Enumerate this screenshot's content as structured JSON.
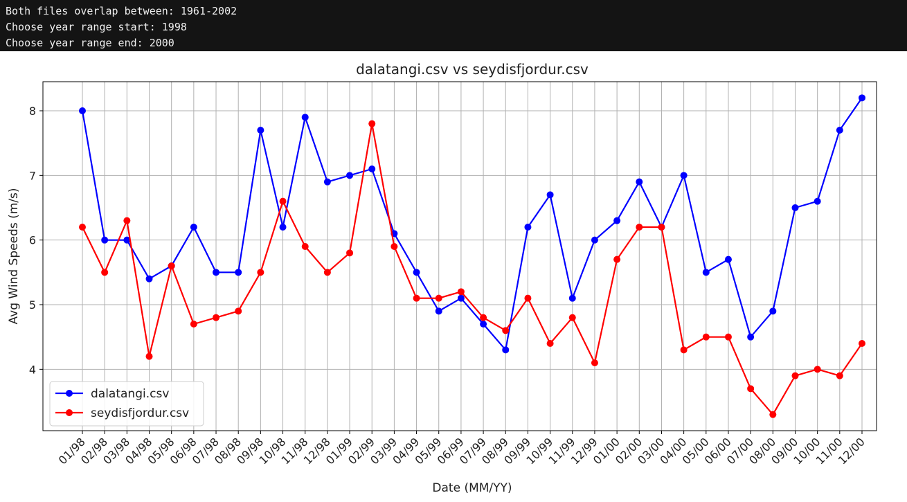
{
  "console": {
    "lines": [
      "Both files overlap between: 1961-2002",
      "Choose year range start: 1998",
      "Choose year range end: 2000"
    ]
  },
  "chart_data": {
    "type": "line",
    "title": "dalatangi.csv vs seydisfjordur.csv",
    "xlabel": "Date (MM/YY)",
    "ylabel": "Avg Wind Speeds (m/s)",
    "categories": [
      "01/98",
      "02/98",
      "03/98",
      "04/98",
      "05/98",
      "06/98",
      "07/98",
      "08/98",
      "09/98",
      "10/98",
      "11/98",
      "12/98",
      "01/99",
      "02/99",
      "03/99",
      "04/99",
      "05/99",
      "06/99",
      "07/99",
      "08/99",
      "09/99",
      "10/99",
      "11/99",
      "12/99",
      "01/00",
      "02/00",
      "03/00",
      "04/00",
      "05/00",
      "06/00",
      "07/00",
      "08/00",
      "09/00",
      "10/00",
      "11/00",
      "12/00"
    ],
    "ylim": [
      3.05,
      8.45
    ],
    "yticks": [
      4,
      5,
      6,
      7,
      8
    ],
    "grid": true,
    "legend_position": "lower-left",
    "series": [
      {
        "name": "dalatangi.csv",
        "color": "#0000ff",
        "values": [
          8.0,
          6.0,
          6.0,
          5.4,
          5.6,
          6.2,
          5.5,
          5.5,
          7.7,
          6.2,
          7.9,
          6.9,
          7.0,
          7.1,
          6.1,
          5.5,
          4.9,
          5.1,
          4.7,
          4.3,
          6.2,
          6.7,
          5.1,
          6.0,
          6.3,
          6.9,
          6.2,
          7.0,
          5.5,
          5.7,
          4.5,
          4.9,
          6.5,
          6.6,
          7.7,
          8.2
        ]
      },
      {
        "name": "seydisfjordur.csv",
        "color": "#ff0000",
        "values": [
          6.2,
          5.5,
          6.3,
          4.2,
          5.6,
          4.7,
          4.8,
          4.9,
          5.5,
          6.6,
          5.9,
          5.5,
          5.8,
          7.8,
          5.9,
          5.1,
          5.1,
          5.2,
          4.8,
          4.6,
          5.1,
          4.4,
          4.8,
          4.1,
          5.7,
          6.2,
          6.2,
          4.3,
          4.5,
          4.5,
          3.7,
          3.3,
          3.9,
          4.0,
          3.9,
          4.4
        ]
      }
    ]
  }
}
